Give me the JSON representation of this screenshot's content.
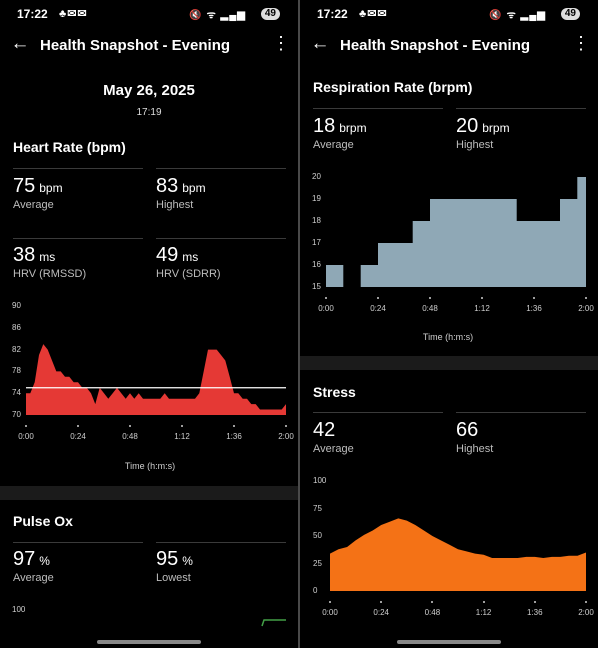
{
  "status_left": {
    "time": "17:22",
    "notif_icons": "♣✉✉",
    "system_icons": "🔇 ᯤ ▂▄▆",
    "battery": "49"
  },
  "status_right": {
    "time": "17:22",
    "notif_icons": "♣✉✉",
    "system_icons": "🔇 ᯤ ▂▄▆",
    "battery": "49"
  },
  "appbar": {
    "title": "Health Snapshot - Evening",
    "back_icon": "←",
    "more_icon": "⋮"
  },
  "snapshot": {
    "date": "May 26, 2025",
    "time": "17:19"
  },
  "heart_rate": {
    "title": "Heart Rate (bpm)",
    "average": {
      "value": "75",
      "unit": "bpm",
      "label": "Average"
    },
    "highest": {
      "value": "83",
      "unit": "bpm",
      "label": "Highest"
    },
    "hrv_rmssd": {
      "value": "38",
      "unit": "ms",
      "label": "HRV (RMSSD)"
    },
    "hrv_sdrr": {
      "value": "49",
      "unit": "ms",
      "label": "HRV (SDRR)"
    },
    "xlabel": "Time (h:m:s)"
  },
  "pulse_ox": {
    "title": "Pulse Ox",
    "average": {
      "value": "97",
      "unit": "%",
      "label": "Average"
    },
    "lowest": {
      "value": "95",
      "unit": "%",
      "label": "Lowest"
    }
  },
  "respiration": {
    "title": "Respiration Rate (brpm)",
    "average": {
      "value": "18",
      "unit": "brpm",
      "label": "Average"
    },
    "highest": {
      "value": "20",
      "unit": "brpm",
      "label": "Highest"
    },
    "xlabel": "Time (h:m:s)"
  },
  "stress": {
    "title": "Stress",
    "average": {
      "value": "42",
      "label": "Average"
    },
    "highest": {
      "value": "66",
      "label": "Highest"
    }
  },
  "chart_data": [
    {
      "type": "area",
      "name": "heart-rate",
      "color": "#e53935",
      "xlim": [
        0,
        120
      ],
      "ylim": [
        70,
        90
      ],
      "yticks": [
        70,
        74,
        78,
        82,
        86,
        90
      ],
      "xticks": [
        "0:00",
        "0:24",
        "0:48",
        "1:12",
        "1:36",
        "2:00"
      ],
      "xtick_values": [
        0,
        24,
        48,
        72,
        96,
        120
      ],
      "average_line": 75,
      "x": [
        0,
        2,
        4,
        6,
        8,
        10,
        12,
        14,
        16,
        18,
        20,
        22,
        24,
        26,
        28,
        30,
        32,
        34,
        36,
        38,
        40,
        42,
        44,
        46,
        48,
        50,
        52,
        54,
        56,
        58,
        60,
        62,
        64,
        66,
        68,
        70,
        72,
        74,
        76,
        78,
        80,
        82,
        84,
        86,
        88,
        90,
        92,
        94,
        96,
        98,
        100,
        102,
        104,
        106,
        108,
        110,
        112,
        114,
        116,
        118,
        120
      ],
      "y": [
        74,
        74,
        76,
        81,
        83,
        82,
        80,
        78,
        78,
        77,
        77,
        76,
        76,
        75,
        75,
        74,
        72,
        75,
        74,
        73,
        74,
        75,
        74,
        73,
        74,
        73,
        74,
        73,
        73,
        73,
        73,
        73,
        74,
        73,
        73,
        73,
        73,
        73,
        73,
        73,
        74,
        78,
        82,
        82,
        82,
        81,
        80,
        77,
        74,
        74,
        73,
        73,
        72,
        72,
        71,
        71,
        71,
        71,
        71,
        71,
        72
      ]
    },
    {
      "type": "line",
      "name": "pulse-ox",
      "color": "#43a047",
      "ytick_visible": "100"
    },
    {
      "type": "area",
      "name": "respiration-rate",
      "color": "#8fa8b6",
      "xlim": [
        0,
        120
      ],
      "ylim": [
        15,
        20
      ],
      "yticks": [
        15,
        16,
        17,
        18,
        19,
        20
      ],
      "xticks": [
        "0:00",
        "0:24",
        "0:48",
        "1:12",
        "1:36",
        "2:00"
      ],
      "xtick_values": [
        0,
        24,
        48,
        72,
        96,
        120
      ],
      "x": [
        0,
        8,
        8,
        16,
        16,
        24,
        24,
        40,
        40,
        48,
        48,
        88,
        88,
        108,
        108,
        116,
        116,
        120
      ],
      "y": [
        16,
        16,
        15,
        15,
        16,
        16,
        17,
        17,
        18,
        18,
        19,
        19,
        18,
        18,
        19,
        19,
        20,
        20
      ]
    },
    {
      "type": "area",
      "name": "stress",
      "color": "#f47216",
      "xlim": [
        0,
        120
      ],
      "ylim": [
        0,
        100
      ],
      "yticks": [
        0,
        25,
        50,
        75,
        100
      ],
      "xticks": [
        "0:00",
        "0:24",
        "0:48",
        "1:12",
        "1:36",
        "2:00"
      ],
      "xtick_values": [
        0,
        24,
        48,
        72,
        96,
        120
      ],
      "x": [
        0,
        4,
        8,
        12,
        16,
        20,
        24,
        28,
        32,
        36,
        40,
        44,
        48,
        52,
        56,
        60,
        64,
        68,
        72,
        76,
        80,
        84,
        88,
        92,
        96,
        100,
        104,
        108,
        112,
        116,
        120
      ],
      "y": [
        34,
        38,
        40,
        46,
        51,
        55,
        60,
        63,
        66,
        64,
        60,
        55,
        50,
        46,
        42,
        38,
        36,
        34,
        33,
        30,
        30,
        30,
        30,
        31,
        31,
        30,
        31,
        31,
        32,
        32,
        35
      ]
    }
  ]
}
